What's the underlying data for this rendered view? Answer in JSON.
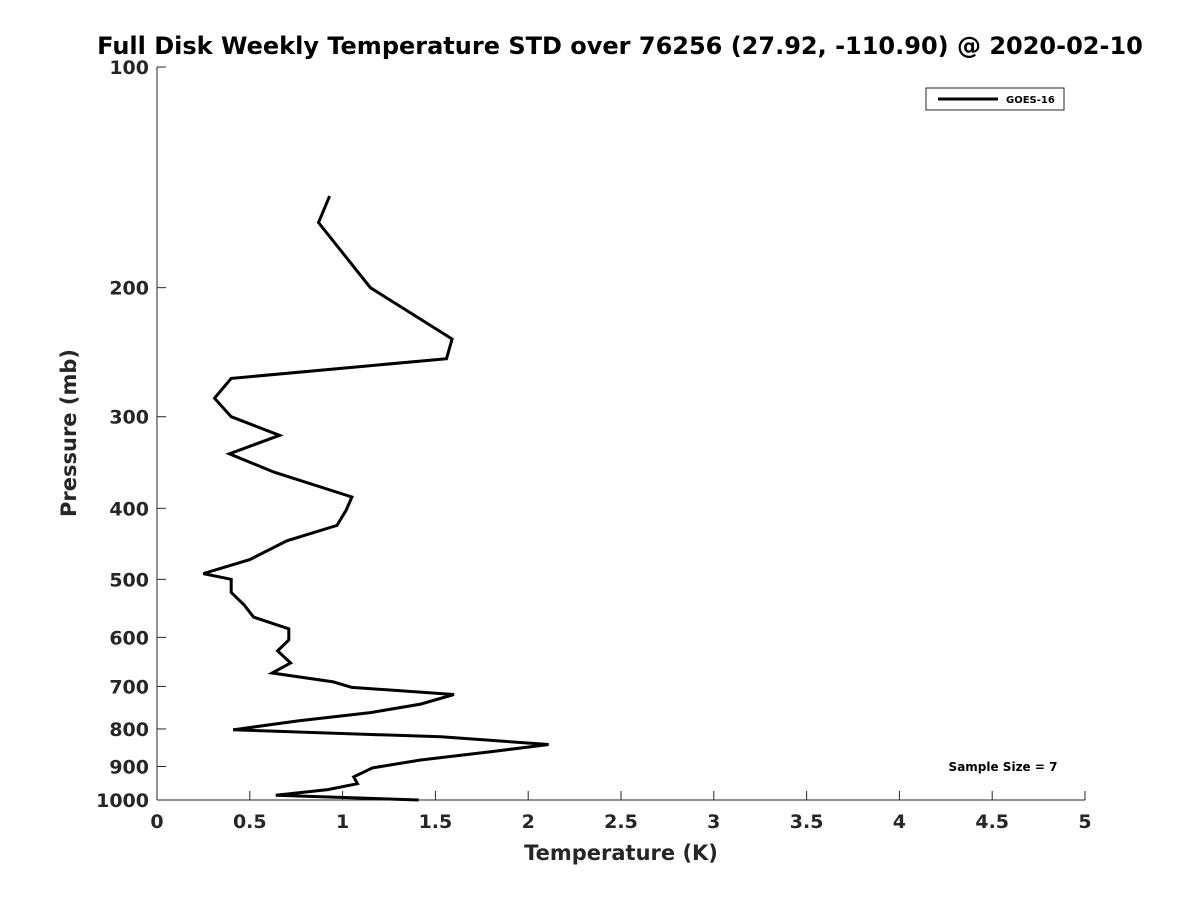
{
  "chart_data": {
    "type": "line",
    "title": "Full Disk Weekly Temperature STD over 76256 (27.92, -110.90) @ 2020-02-10",
    "xlabel": "Temperature (K)",
    "ylabel": "Pressure (mb)",
    "xlim": [
      0,
      5
    ],
    "ylim": [
      100,
      1000
    ],
    "y_scale": "log",
    "y_reversed": true,
    "grid": false,
    "legend_position": "top-right",
    "x_ticks": [
      0,
      0.5,
      1,
      1.5,
      2,
      2.5,
      3,
      3.5,
      4,
      4.5,
      5
    ],
    "x_tick_labels": [
      "0",
      "0.5",
      "1",
      "1.5",
      "2",
      "2.5",
      "3",
      "3.5",
      "4",
      "4.5",
      "5"
    ],
    "y_ticks": [
      100,
      200,
      300,
      400,
      500,
      600,
      700,
      800,
      900,
      1000
    ],
    "y_tick_labels": [
      "100",
      "200",
      "300",
      "400",
      "500",
      "600",
      "700",
      "800",
      "900",
      "1000"
    ],
    "series": [
      {
        "name": "GOES-16",
        "color": "#000000",
        "points": [
          [
            0.93,
            150
          ],
          [
            0.87,
            163
          ],
          [
            1.15,
            200
          ],
          [
            1.59,
            235
          ],
          [
            1.56,
            250
          ],
          [
            0.4,
            266
          ],
          [
            0.31,
            283
          ],
          [
            0.4,
            300
          ],
          [
            0.66,
            318
          ],
          [
            0.39,
            337
          ],
          [
            0.63,
            357
          ],
          [
            1.05,
            386
          ],
          [
            1.02,
            402
          ],
          [
            0.97,
            422
          ],
          [
            0.7,
            443
          ],
          [
            0.5,
            470
          ],
          [
            0.25,
            491
          ],
          [
            0.4,
            500
          ],
          [
            0.4,
            521
          ],
          [
            0.47,
            542
          ],
          [
            0.52,
            563
          ],
          [
            0.71,
            584
          ],
          [
            0.71,
            605
          ],
          [
            0.65,
            626
          ],
          [
            0.72,
            650
          ],
          [
            0.62,
            671
          ],
          [
            0.95,
            690
          ],
          [
            1.05,
            702
          ],
          [
            1.6,
            718
          ],
          [
            1.42,
            740
          ],
          [
            1.15,
            760
          ],
          [
            0.76,
            780
          ],
          [
            0.41,
            802
          ],
          [
            1.53,
            820
          ],
          [
            2.11,
            840
          ],
          [
            1.82,
            858
          ],
          [
            1.42,
            882
          ],
          [
            1.16,
            904
          ],
          [
            1.06,
            930
          ],
          [
            1.08,
            950
          ],
          [
            0.92,
            968
          ],
          [
            0.64,
            985
          ],
          [
            1.41,
            1000
          ]
        ]
      }
    ],
    "annotations": [
      {
        "text": "Sample Size = 7",
        "position": "bottom-right"
      }
    ]
  }
}
